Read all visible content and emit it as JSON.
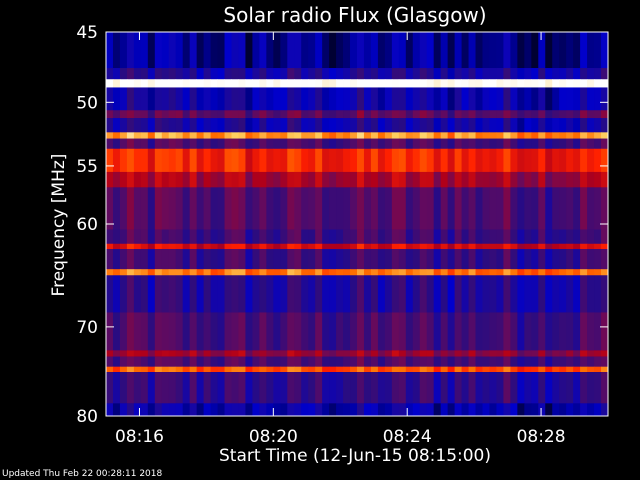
{
  "chart_data": {
    "type": "heatmap",
    "title": "Solar radio Flux (Glasgow)",
    "xlabel": "Start Time (12-Jun-15 08:15:00)",
    "ylabel": "Frequency [MHz]",
    "y_scale": "log",
    "ylim": [
      45,
      80
    ],
    "y_ticks": [
      {
        "value": 45,
        "label": "45"
      },
      {
        "value": 50,
        "label": "50"
      },
      {
        "value": 55,
        "label": "55"
      },
      {
        "value": 60,
        "label": "60"
      },
      {
        "value": 70,
        "label": "70"
      },
      {
        "value": 80,
        "label": "80"
      }
    ],
    "xlim": [
      "08:15:00",
      "08:30:00"
    ],
    "x_ticks": [
      {
        "value": "08:16:00",
        "label": "08:16"
      },
      {
        "value": "08:20:00",
        "label": "08:20"
      },
      {
        "value": "08:24:00",
        "label": "08:24"
      },
      {
        "value": "08:28:00",
        "label": "08:28"
      }
    ],
    "colormap": [
      "#000033",
      "#0000cc",
      "#2a0c80",
      "#6a0a5a",
      "#b0001a",
      "#ff2000",
      "#ff7000",
      "#ffd060",
      "#ffffff"
    ],
    "frequency_bands": [
      {
        "from": 45,
        "to": 47.5,
        "level": 0.08
      },
      {
        "from": 47.5,
        "to": 48.3,
        "level": 0.2
      },
      {
        "from": 48.3,
        "to": 48.9,
        "level": 1.0
      },
      {
        "from": 48.9,
        "to": 50.6,
        "level": 0.15
      },
      {
        "from": 50.6,
        "to": 51.2,
        "level": 0.35
      },
      {
        "from": 51.2,
        "to": 52.3,
        "level": 0.18
      },
      {
        "from": 52.3,
        "to": 52.8,
        "level": 0.8
      },
      {
        "from": 52.8,
        "to": 53.6,
        "level": 0.3
      },
      {
        "from": 53.6,
        "to": 55.5,
        "level": 0.62
      },
      {
        "from": 55.5,
        "to": 56.8,
        "level": 0.48
      },
      {
        "from": 56.8,
        "to": 60.5,
        "level": 0.32
      },
      {
        "from": 60.5,
        "to": 61.8,
        "level": 0.28
      },
      {
        "from": 61.8,
        "to": 62.3,
        "level": 0.55
      },
      {
        "from": 62.3,
        "to": 64.2,
        "level": 0.27
      },
      {
        "from": 64.2,
        "to": 64.8,
        "level": 0.75
      },
      {
        "from": 64.8,
        "to": 68.5,
        "level": 0.22
      },
      {
        "from": 68.5,
        "to": 72.5,
        "level": 0.3
      },
      {
        "from": 72.5,
        "to": 73.2,
        "level": 0.45
      },
      {
        "from": 73.2,
        "to": 74.3,
        "level": 0.3
      },
      {
        "from": 74.3,
        "to": 74.9,
        "level": 0.7
      },
      {
        "from": 74.9,
        "to": 78.5,
        "level": 0.25
      },
      {
        "from": 78.5,
        "to": 80,
        "level": 0.12
      }
    ]
  },
  "footer": {
    "updated": "Updated Thu Feb 22 00:28:11 2018"
  }
}
